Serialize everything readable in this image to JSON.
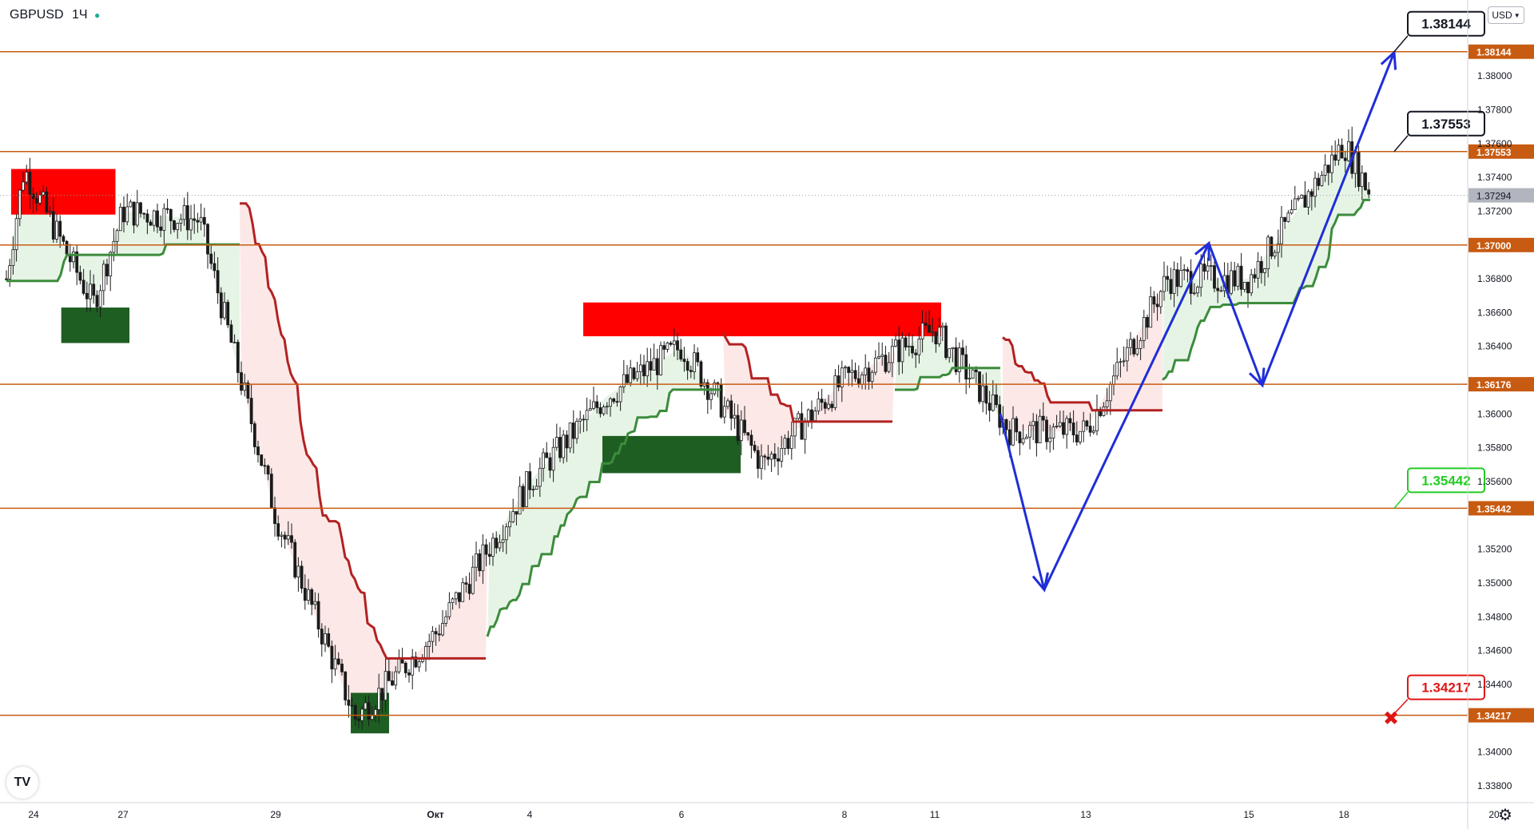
{
  "header": {
    "symbol": "GBPUSD",
    "timeframe": "1Ч",
    "currency": "USD"
  },
  "colors": {
    "level_line": "#c75b12",
    "red_zone": "#ff0000",
    "green_zone": "#1e5e22",
    "trend_green": "#3c8c3c",
    "trend_red": "#b22222",
    "arrow_blue": "#1f2ed8",
    "candle_black": "#1a1a1a",
    "fill_green": "#e6f4e6",
    "fill_red": "#fde8e8"
  },
  "chart_data": {
    "type": "candlestick",
    "title": "GBPUSD",
    "timeframe": "1Ч",
    "ylim": [
      1.337,
      1.3845
    ],
    "y_ticks": [
      "1.38000",
      "1.37800",
      "1.37600",
      "1.37400",
      "1.37200",
      "1.36800",
      "1.36600",
      "1.36400",
      "1.36000",
      "1.35800",
      "1.35600",
      "1.35200",
      "1.35000",
      "1.34800",
      "1.34600",
      "1.34400",
      "1.34000",
      "1.33800"
    ],
    "x_ticks": [
      "24",
      "27",
      "29",
      "Окт",
      "4",
      "6",
      "8",
      "11",
      "13",
      "15",
      "18",
      "20"
    ],
    "last_price": "1.37294",
    "levels": [
      {
        "price": 1.38144,
        "label": "1.38144",
        "callout": "1.38144",
        "style": "black"
      },
      {
        "price": 1.37553,
        "label": "1.37553",
        "callout": "1.37553",
        "style": "black"
      },
      {
        "price": 1.37,
        "label": "1.37000"
      },
      {
        "price": 1.36176,
        "label": "1.36176"
      },
      {
        "price": 1.35442,
        "label": "1.35442",
        "callout": "1.35442",
        "style": "green"
      },
      {
        "price": 1.34217,
        "label": "1.34217",
        "callout": "1.34217",
        "style": "red"
      }
    ],
    "supply_zones": [
      {
        "from": "24",
        "to": "28",
        "low": 1.3718,
        "high": 1.3745
      },
      {
        "from": "5",
        "to": "11",
        "low": 1.3646,
        "high": 1.3666
      }
    ],
    "demand_zones": [
      {
        "from": "26",
        "to": "27",
        "low": 1.3642,
        "high": 1.3663
      },
      {
        "from": "30",
        "to": "Окт",
        "low": 1.3411,
        "high": 1.3435
      },
      {
        "from": "5",
        "to": "8",
        "low": 1.3565,
        "high": 1.3587
      }
    ],
    "projection_path": [
      {
        "label": "11",
        "price": 1.36
      },
      {
        "label": "12",
        "price": 1.3496
      },
      {
        "label": "14",
        "price": 1.3701
      },
      {
        "label": "15",
        "price": 1.3617
      },
      {
        "label": "18",
        "price": 1.3814
      }
    ],
    "price_path": [
      {
        "label": "24",
        "price": 1.368
      },
      {
        "label": "24",
        "price": 1.3745
      },
      {
        "label": "26",
        "price": 1.3665
      },
      {
        "label": "27",
        "price": 1.372
      },
      {
        "label": "28",
        "price": 1.3715
      },
      {
        "label": "29",
        "price": 1.354
      },
      {
        "label": "30",
        "price": 1.342
      },
      {
        "label": "Окт",
        "price": 1.347
      },
      {
        "label": "4",
        "price": 1.356
      },
      {
        "label": "5",
        "price": 1.361
      },
      {
        "label": "6",
        "price": 1.364
      },
      {
        "label": "7",
        "price": 1.357
      },
      {
        "label": "8",
        "price": 1.362
      },
      {
        "label": "11",
        "price": 1.365
      },
      {
        "label": "12",
        "price": 1.359
      },
      {
        "label": "13",
        "price": 1.359
      },
      {
        "label": "14",
        "price": 1.368
      },
      {
        "label": "15",
        "price": 1.368
      },
      {
        "label": "18",
        "price": 1.376
      },
      {
        "label": "19",
        "price": 1.3729
      }
    ]
  }
}
